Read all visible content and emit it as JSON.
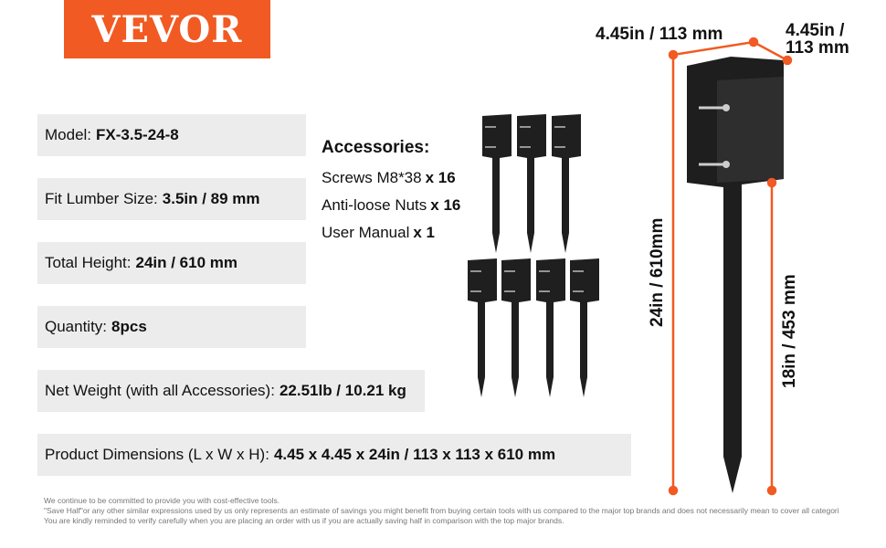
{
  "brand": {
    "logo": "VEVOR",
    "color": "#f15a22"
  },
  "specs": [
    {
      "label": "Model:",
      "value": "FX-3.5-24-8"
    },
    {
      "label": "Fit Lumber Size:",
      "value": "3.5in / 89 mm"
    },
    {
      "label": "Total Height:",
      "value": "24in / 610 mm"
    },
    {
      "label": "Quantity:",
      "value": "8pcs"
    },
    {
      "label": "Net Weight (with all Accessories):",
      "value": "22.51lb / 10.21 kg"
    },
    {
      "label": "Product Dimensions (L x W x H):",
      "value": "4.45 x 4.45 x 24in / 113 x 113 x 610 mm"
    }
  ],
  "accessories": {
    "title": "Accessories:",
    "items": [
      {
        "name": "Screws M8*38",
        "qty": "x 16"
      },
      {
        "name": "Anti-loose Nuts",
        "qty": "x 16"
      },
      {
        "name": "User Manual",
        "qty": "x 1"
      }
    ]
  },
  "dimensions": {
    "width": "4.45in / 113 mm",
    "depth_line1": "4.45in /",
    "depth_line2": "113 mm",
    "height": "24in / 610mm",
    "spike": "18in / 453 mm"
  },
  "disclaimer": [
    "We continue to be committed to provide you with cost-effective tools.",
    "\"Save Half\"or any other similar expressions used by us only represents an estimate of savings you might benefit from buying certain tools with us compared to the major top brands and does not necessarily mean to cover all categori",
    "You are kindly reminded to verify carefully when you are placing an order with us if you are actually saving half in comparison with the top major brands."
  ]
}
